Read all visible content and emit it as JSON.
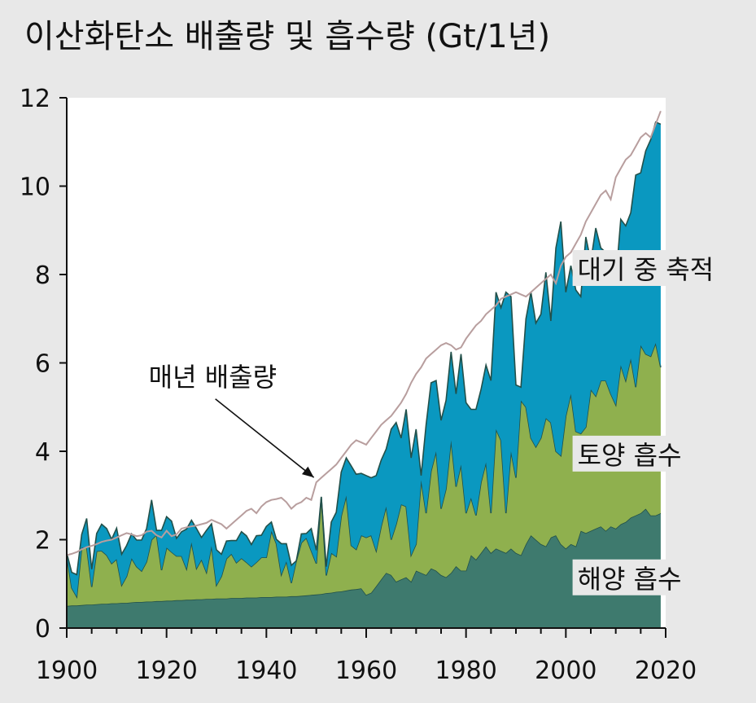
{
  "chart_data": {
    "type": "area",
    "title": "이산화탄소 배출량 및 흡수량 (Gt/1년)",
    "xlabel": "",
    "ylabel": "",
    "xlim": [
      1900,
      2020
    ],
    "ylim": [
      0,
      12
    ],
    "x_ticks": [
      1900,
      1920,
      1940,
      1960,
      1980,
      2000,
      2020
    ],
    "y_ticks": [
      0,
      2,
      4,
      6,
      8,
      10,
      12
    ],
    "grid": false,
    "stacked": true,
    "x": [
      1900,
      1901,
      1902,
      1903,
      1904,
      1905,
      1906,
      1907,
      1908,
      1909,
      1910,
      1911,
      1912,
      1913,
      1914,
      1915,
      1916,
      1917,
      1918,
      1919,
      1920,
      1921,
      1922,
      1923,
      1924,
      1925,
      1926,
      1927,
      1928,
      1929,
      1930,
      1931,
      1932,
      1933,
      1934,
      1935,
      1936,
      1937,
      1938,
      1939,
      1940,
      1941,
      1942,
      1943,
      1944,
      1945,
      1946,
      1947,
      1948,
      1949,
      1950,
      1951,
      1952,
      1953,
      1954,
      1955,
      1956,
      1957,
      1958,
      1959,
      1960,
      1961,
      1962,
      1963,
      1964,
      1965,
      1966,
      1967,
      1968,
      1969,
      1970,
      1971,
      1972,
      1973,
      1974,
      1975,
      1976,
      1977,
      1978,
      1979,
      1980,
      1981,
      1982,
      1983,
      1984,
      1985,
      1986,
      1987,
      1988,
      1989,
      1990,
      1991,
      1992,
      1993,
      1994,
      1995,
      1996,
      1997,
      1998,
      1999,
      2000,
      2001,
      2002,
      2003,
      2004,
      2005,
      2006,
      2007,
      2008,
      2009,
      2010,
      2011,
      2012,
      2013,
      2014,
      2015,
      2016,
      2017,
      2018,
      2019
    ],
    "series": [
      {
        "name": "해양 흡수",
        "color": "#3e7a6e",
        "values": [
          0.5,
          0.51,
          0.51,
          0.52,
          0.53,
          0.53,
          0.54,
          0.55,
          0.55,
          0.56,
          0.56,
          0.57,
          0.57,
          0.58,
          0.59,
          0.59,
          0.6,
          0.6,
          0.61,
          0.61,
          0.62,
          0.62,
          0.63,
          0.63,
          0.64,
          0.64,
          0.65,
          0.65,
          0.66,
          0.66,
          0.67,
          0.67,
          0.67,
          0.68,
          0.68,
          0.68,
          0.69,
          0.69,
          0.69,
          0.7,
          0.7,
          0.7,
          0.71,
          0.71,
          0.71,
          0.72,
          0.72,
          0.73,
          0.74,
          0.75,
          0.76,
          0.77,
          0.79,
          0.8,
          0.82,
          0.83,
          0.85,
          0.87,
          0.88,
          0.9,
          0.75,
          0.8,
          0.95,
          1.1,
          1.25,
          1.2,
          1.05,
          1.1,
          1.15,
          1.05,
          1.3,
          1.25,
          1.2,
          1.35,
          1.3,
          1.2,
          1.15,
          1.25,
          1.4,
          1.3,
          1.3,
          1.65,
          1.55,
          1.7,
          1.85,
          1.7,
          1.8,
          1.75,
          1.7,
          1.8,
          1.7,
          1.65,
          1.9,
          2.1,
          2.0,
          1.9,
          1.85,
          2.05,
          2.1,
          1.9,
          1.8,
          1.9,
          1.85,
          2.2,
          2.15,
          2.2,
          2.25,
          2.3,
          2.2,
          2.3,
          2.25,
          2.35,
          2.4,
          2.5,
          2.55,
          2.6,
          2.7,
          2.55,
          2.55,
          2.6
        ]
      },
      {
        "name": "토양 흡수",
        "color": "#8fb04e",
        "values": [
          1.15,
          0.4,
          0.2,
          1.3,
          1.3,
          0.4,
          1.2,
          1.2,
          1.1,
          0.9,
          1.0,
          0.4,
          0.6,
          1.0,
          0.8,
          0.7,
          0.9,
          1.4,
          1.5,
          0.7,
          1.2,
          1.1,
          1.0,
          1.0,
          0.7,
          1.3,
          0.7,
          0.9,
          0.6,
          1.2,
          0.3,
          0.5,
          0.9,
          1.0,
          0.8,
          0.9,
          0.8,
          0.7,
          0.8,
          0.9,
          0.9,
          1.5,
          1.2,
          0.5,
          0.8,
          0.3,
          0.8,
          1.2,
          1.3,
          1.0,
          0.7,
          2.2,
          0.4,
          0.9,
          0.8,
          1.7,
          2.15,
          1.0,
          0.9,
          1.2,
          1.3,
          1.3,
          0.8,
          1.2,
          1.5,
          0.8,
          1.3,
          1.7,
          1.6,
          0.6,
          0.6,
          2.1,
          1.4,
          2.2,
          2.7,
          1.5,
          2.0,
          3.0,
          1.8,
          2.4,
          1.3,
          1.3,
          1.0,
          1.6,
          1.9,
          0.9,
          2.7,
          2.5,
          0.9,
          2.2,
          1.7,
          3.5,
          3.1,
          2.2,
          2.1,
          2.4,
          2.9,
          2.6,
          1.9,
          2.0,
          3.0,
          3.4,
          2.6,
          2.2,
          2.4,
          3.2,
          3.0,
          3.3,
          3.4,
          3.0,
          2.8,
          3.6,
          3.2,
          3.6,
          2.9,
          3.8,
          3.5,
          3.6,
          3.9,
          3.3
        ]
      },
      {
        "name": "대기 중 축적",
        "color": "#0a98c0",
        "values": [
          0.05,
          0.35,
          0.5,
          0.3,
          0.65,
          0.4,
          0.4,
          0.6,
          0.6,
          0.55,
          0.7,
          0.7,
          0.7,
          0.55,
          0.6,
          0.7,
          0.75,
          0.9,
          0.1,
          0.9,
          0.7,
          0.7,
          0.4,
          0.55,
          0.9,
          0.5,
          0.9,
          0.5,
          0.95,
          0.5,
          0.8,
          0.5,
          0.4,
          0.3,
          0.5,
          0.6,
          0.6,
          0.5,
          0.6,
          0.5,
          0.7,
          0.2,
          0.1,
          0.7,
          0.4,
          0.4,
          0.0,
          0.2,
          0.1,
          0.5,
          0.3,
          0.0,
          0.2,
          0.7,
          1.0,
          1.0,
          0.85,
          1.8,
          1.7,
          1.4,
          1.4,
          1.3,
          1.7,
          1.5,
          1.3,
          2.5,
          2.3,
          1.5,
          2.2,
          2.2,
          2.6,
          0.1,
          2.0,
          2.0,
          1.6,
          2.0,
          2.0,
          2.0,
          2.1,
          2.5,
          2.5,
          2.0,
          2.4,
          2.1,
          2.2,
          3.0,
          3.1,
          3.0,
          5.0,
          3.5,
          2.1,
          0.3,
          2.0,
          3.3,
          2.8,
          2.8,
          3.3,
          2.3,
          4.6,
          5.3,
          2.8,
          2.9,
          3.2,
          3.1,
          4.3,
          2.9,
          3.8,
          3.0,
          2.9,
          3.0,
          2.8,
          3.3,
          3.5,
          3.3,
          4.8,
          3.9,
          4.6,
          4.9,
          5.0,
          5.5
        ]
      },
      {
        "name": "매년 배출량",
        "type": "line",
        "color": "#b89e9e",
        "values": [
          1.65,
          1.68,
          1.72,
          1.78,
          1.83,
          1.86,
          1.9,
          1.95,
          1.98,
          2.0,
          2.05,
          2.1,
          2.15,
          2.12,
          2.08,
          2.1,
          2.18,
          2.2,
          2.1,
          2.05,
          2.2,
          2.08,
          2.12,
          2.25,
          2.28,
          2.3,
          2.32,
          2.35,
          2.38,
          2.45,
          2.4,
          2.35,
          2.25,
          2.35,
          2.45,
          2.55,
          2.65,
          2.7,
          2.6,
          2.75,
          2.85,
          2.9,
          2.92,
          2.95,
          2.85,
          2.7,
          2.8,
          2.85,
          2.95,
          2.9,
          3.3,
          3.4,
          3.5,
          3.6,
          3.7,
          3.85,
          4.0,
          4.15,
          4.25,
          4.2,
          4.15,
          4.3,
          4.45,
          4.6,
          4.7,
          4.8,
          4.95,
          5.1,
          5.3,
          5.55,
          5.75,
          5.9,
          6.1,
          6.2,
          6.3,
          6.4,
          6.45,
          6.4,
          6.3,
          6.35,
          6.55,
          6.7,
          6.85,
          6.95,
          7.1,
          7.2,
          7.3,
          7.45,
          7.5,
          7.55,
          7.6,
          7.55,
          7.5,
          7.6,
          7.7,
          7.8,
          7.9,
          8.0,
          7.8,
          8.2,
          8.4,
          8.5,
          8.7,
          8.9,
          9.2,
          9.4,
          9.6,
          9.8,
          9.9,
          9.7,
          10.2,
          10.4,
          10.6,
          10.7,
          10.9,
          11.1,
          11.2,
          11.1,
          11.4,
          11.7
        ]
      }
    ],
    "annotations": [
      {
        "text": "대기 중 축적",
        "anchor_x": 2017,
        "anchor_y": 8.0
      },
      {
        "text": "토양 흡수",
        "anchor_x": 2017,
        "anchor_y": 3.8
      },
      {
        "text": "해양 흡수",
        "anchor_x": 2017,
        "anchor_y": 1.0
      },
      {
        "text": "매년 배출량",
        "label_x": 1935,
        "label_y": 5.7,
        "arrow_to_x": 1950,
        "arrow_to_y": 3.5
      }
    ]
  }
}
